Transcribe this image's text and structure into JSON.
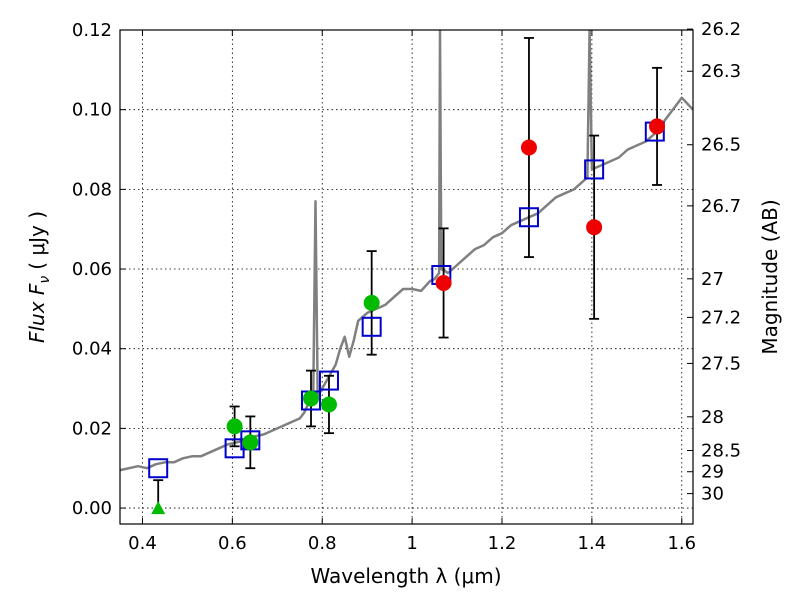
{
  "chart_data": {
    "type": "scatter",
    "xlabel": "Wavelength  λ (μm)",
    "ylabel": "Flux  F",
    "ylabel_sub": "ν",
    "ylabel_unit": "( μJy )",
    "y2label": "Magnitude (AB)",
    "xlim": [
      0.35,
      1.625
    ],
    "ylim": [
      -0.004,
      0.12
    ],
    "x_ticks": [
      0.4,
      0.6,
      0.8,
      1.0,
      1.2,
      1.4,
      1.6
    ],
    "x_tick_labels": [
      "0.4",
      "0.6",
      "0.8",
      "1",
      "1.2",
      "1.4",
      "1.6"
    ],
    "y_ticks": [
      0.0,
      0.02,
      0.04,
      0.06,
      0.08,
      0.1,
      0.12
    ],
    "y_tick_labels": [
      "0.00",
      "0.02",
      "0.04",
      "0.06",
      "0.08",
      "0.10",
      "0.12"
    ],
    "y2_ticks": [
      26.2,
      26.3,
      26.5,
      26.7,
      27,
      27.2,
      27.5,
      28,
      28.5,
      29,
      30
    ],
    "y2_tick_labels": [
      "26.2",
      "26.3",
      "26.5",
      "26.7",
      "27",
      "27.2",
      "27.5",
      "28",
      "28.5",
      "29",
      "30"
    ],
    "grid": true,
    "spectrum": {
      "color": "#808080",
      "points": [
        [
          0.35,
          0.0095
        ],
        [
          0.37,
          0.01
        ],
        [
          0.39,
          0.0105
        ],
        [
          0.41,
          0.01
        ],
        [
          0.43,
          0.011
        ],
        [
          0.45,
          0.0115
        ],
        [
          0.47,
          0.0115
        ],
        [
          0.49,
          0.0125
        ],
        [
          0.51,
          0.013
        ],
        [
          0.53,
          0.013
        ],
        [
          0.55,
          0.014
        ],
        [
          0.57,
          0.015
        ],
        [
          0.59,
          0.016
        ],
        [
          0.61,
          0.0165
        ],
        [
          0.63,
          0.017
        ],
        [
          0.65,
          0.018
        ],
        [
          0.67,
          0.0185
        ],
        [
          0.69,
          0.0195
        ],
        [
          0.71,
          0.0205
        ],
        [
          0.73,
          0.0215
        ],
        [
          0.75,
          0.0225
        ],
        [
          0.76,
          0.024
        ],
        [
          0.77,
          0.0265
        ],
        [
          0.78,
          0.027
        ],
        [
          0.785,
          0.077
        ],
        [
          0.79,
          0.028
        ],
        [
          0.8,
          0.03
        ],
        [
          0.81,
          0.032
        ],
        [
          0.82,
          0.034
        ],
        [
          0.83,
          0.036
        ],
        [
          0.84,
          0.04
        ],
        [
          0.85,
          0.043
        ],
        [
          0.86,
          0.038
        ],
        [
          0.87,
          0.042
        ],
        [
          0.88,
          0.047
        ],
        [
          0.9,
          0.049
        ],
        [
          0.92,
          0.05
        ],
        [
          0.94,
          0.051
        ],
        [
          0.96,
          0.053
        ],
        [
          0.98,
          0.055
        ],
        [
          1.0,
          0.055
        ],
        [
          1.02,
          0.0545
        ],
        [
          1.04,
          0.057
        ],
        [
          1.05,
          0.0575
        ],
        [
          1.06,
          0.059
        ],
        [
          1.062,
          0.12
        ],
        [
          1.065,
          0.06
        ],
        [
          1.08,
          0.059
        ],
        [
          1.1,
          0.061
        ],
        [
          1.12,
          0.063
        ],
        [
          1.14,
          0.065
        ],
        [
          1.16,
          0.066
        ],
        [
          1.18,
          0.068
        ],
        [
          1.2,
          0.069
        ],
        [
          1.22,
          0.071
        ],
        [
          1.24,
          0.072
        ],
        [
          1.26,
          0.073
        ],
        [
          1.28,
          0.074
        ],
        [
          1.3,
          0.076
        ],
        [
          1.32,
          0.078
        ],
        [
          1.34,
          0.079
        ],
        [
          1.36,
          0.08
        ],
        [
          1.38,
          0.082
        ],
        [
          1.39,
          0.083
        ],
        [
          1.395,
          0.12
        ],
        [
          1.4,
          0.085
        ],
        [
          1.42,
          0.086
        ],
        [
          1.44,
          0.087
        ],
        [
          1.46,
          0.088
        ],
        [
          1.48,
          0.09
        ],
        [
          1.5,
          0.091
        ],
        [
          1.52,
          0.092
        ],
        [
          1.54,
          0.094
        ],
        [
          1.56,
          0.097
        ],
        [
          1.58,
          0.1
        ],
        [
          1.6,
          0.103
        ],
        [
          1.625,
          0.1
        ]
      ]
    },
    "series": [
      {
        "marker": "square",
        "color": "#0000cc",
        "points": [
          [
            0.435,
            0.01
          ],
          [
            0.605,
            0.015
          ],
          [
            0.64,
            0.017
          ],
          [
            0.775,
            0.027
          ],
          [
            0.815,
            0.032
          ],
          [
            0.91,
            0.0455
          ],
          [
            1.065,
            0.0585
          ],
          [
            1.26,
            0.073
          ],
          [
            1.405,
            0.085
          ],
          [
            1.54,
            0.0945
          ]
        ]
      },
      {
        "marker": "circle",
        "color": "#00bb00",
        "points": [
          [
            0.605,
            0.0205
          ],
          [
            0.64,
            0.0165
          ],
          [
            0.775,
            0.0275
          ],
          [
            0.815,
            0.026
          ],
          [
            0.91,
            0.0515
          ]
        ],
        "errors": [
          0.005,
          0.0065,
          0.007,
          0.0072,
          0.013
        ]
      },
      {
        "marker": "circle",
        "color": "#ee0000",
        "points": [
          [
            1.07,
            0.0565
          ],
          [
            1.26,
            0.0905
          ],
          [
            1.405,
            0.0705
          ],
          [
            1.545,
            0.0958
          ]
        ],
        "errors": [
          0.0137,
          0.0275,
          0.023,
          0.0147
        ]
      },
      {
        "marker": "triangle",
        "color": "#00bb00",
        "points": [
          [
            0.435,
            0.0
          ]
        ],
        "errors_upper": [
          0.007
        ]
      }
    ]
  }
}
